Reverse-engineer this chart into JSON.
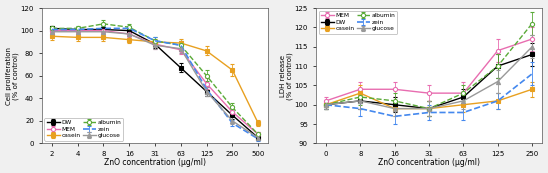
{
  "left": {
    "x_labels": [
      "2",
      "4",
      "8",
      "16",
      "31",
      "63",
      "125",
      "250",
      "500"
    ],
    "x_vals": [
      2,
      4,
      8,
      16,
      31,
      63,
      125,
      250,
      500
    ],
    "ylabel": "Cell proliferation\n(% of control)",
    "xlabel": "ZnO concentration (μg/ml)",
    "ylim": [
      0,
      120
    ],
    "yticks": [
      0,
      20,
      40,
      60,
      80,
      100,
      120
    ],
    "series": {
      "DW": {
        "color": "#000000",
        "linestyle": "-",
        "marker": "s",
        "markersize": 3,
        "linewidth": 1.0,
        "y": [
          102,
          101,
          101,
          100,
          88,
          67,
          46,
          25,
          5
        ],
        "yerr": [
          2,
          2,
          2,
          2,
          3,
          4,
          4,
          3,
          2
        ]
      },
      "MEM": {
        "color": "#e86db0",
        "linestyle": "-",
        "marker": "o",
        "markersize": 3,
        "linewidth": 1.0,
        "y": [
          100,
          100,
          100,
          97,
          88,
          83,
          53,
          28,
          8
        ],
        "yerr": [
          2,
          2,
          2,
          3,
          4,
          4,
          5,
          4,
          2
        ]
      },
      "casein": {
        "color": "#e8a020",
        "linestyle": "-",
        "marker": "s",
        "markersize": 3,
        "linewidth": 1.0,
        "y": [
          95,
          94,
          94,
          92,
          90,
          89,
          82,
          65,
          18
        ],
        "yerr": [
          3,
          3,
          3,
          3,
          3,
          4,
          4,
          5,
          3
        ]
      },
      "albumin": {
        "color": "#5aaa38",
        "linestyle": "--",
        "marker": "o",
        "markersize": 3,
        "linewidth": 1.0,
        "y": [
          102,
          102,
          106,
          103,
          91,
          87,
          60,
          32,
          8
        ],
        "yerr": [
          2,
          2,
          3,
          3,
          3,
          4,
          5,
          4,
          2
        ]
      },
      "zein": {
        "color": "#4488ee",
        "linestyle": "--",
        "marker": "",
        "markersize": 0,
        "linewidth": 1.2,
        "y": [
          101,
          101,
          102,
          102,
          91,
          87,
          48,
          18,
          4
        ],
        "yerr": [
          2,
          2,
          2,
          2,
          3,
          4,
          4,
          3,
          2
        ]
      },
      "glucose": {
        "color": "#999999",
        "linestyle": "-",
        "marker": "^",
        "markersize": 3,
        "linewidth": 1.0,
        "y": [
          99,
          99,
          99,
          97,
          87,
          84,
          46,
          20,
          5
        ],
        "yerr": [
          2,
          2,
          2,
          2,
          3,
          4,
          4,
          3,
          2
        ]
      }
    },
    "legend_order": [
      "DW",
      "MEM",
      "casein",
      "albumin",
      "zein",
      "glucose"
    ],
    "legend_loc": "lower left",
    "legend_ncol": 2
  },
  "right": {
    "x_labels": [
      "0",
      "8",
      "16",
      "31",
      "63",
      "125",
      "250"
    ],
    "x_vals": [
      0,
      8,
      16,
      31,
      63,
      125,
      250
    ],
    "ylabel": "LDH release\n(% of control)",
    "xlabel": "ZnO concentration (μg/ml)",
    "ylim": [
      90,
      125
    ],
    "yticks": [
      90,
      95,
      100,
      105,
      110,
      115,
      120,
      125
    ],
    "series": {
      "MEM": {
        "color": "#e86db0",
        "linestyle": "-",
        "marker": "o",
        "markersize": 3,
        "linewidth": 1.0,
        "y": [
          101,
          104,
          104,
          103,
          103,
          114,
          117
        ],
        "yerr": [
          1,
          2,
          2,
          2,
          3,
          3,
          3
        ]
      },
      "DW": {
        "color": "#000000",
        "linestyle": "-",
        "marker": "s",
        "markersize": 3,
        "linewidth": 1.0,
        "y": [
          100,
          101,
          100,
          99,
          102,
          110,
          113
        ],
        "yerr": [
          1,
          2,
          2,
          2,
          2,
          3,
          3
        ]
      },
      "casein": {
        "color": "#e8a020",
        "linestyle": "-",
        "marker": "s",
        "markersize": 3,
        "linewidth": 1.0,
        "y": [
          100,
          103,
          99,
          99,
          100,
          101,
          104
        ],
        "yerr": [
          1,
          2,
          2,
          2,
          2,
          2,
          2
        ]
      },
      "albumin": {
        "color": "#5aaa38",
        "linestyle": "--",
        "marker": "o",
        "markersize": 3,
        "linewidth": 1.0,
        "y": [
          100,
          102,
          101,
          99,
          103,
          110,
          121
        ],
        "yerr": [
          1,
          2,
          2,
          2,
          2,
          3,
          3
        ]
      },
      "zein": {
        "color": "#4488ee",
        "linestyle": "--",
        "marker": "",
        "markersize": 0,
        "linewidth": 1.2,
        "y": [
          100,
          99,
          97,
          98,
          98,
          101,
          108
        ],
        "yerr": [
          1,
          2,
          2,
          2,
          2,
          2,
          3
        ]
      },
      "glucose": {
        "color": "#999999",
        "linestyle": "-",
        "marker": "^",
        "markersize": 3,
        "linewidth": 1.0,
        "y": [
          100,
          101,
          99,
          99,
          101,
          106,
          115
        ],
        "yerr": [
          1,
          2,
          2,
          2,
          2,
          3,
          3
        ]
      }
    },
    "legend_order": [
      "MEM",
      "DW",
      "casein",
      "albumin",
      "zein",
      "glucose"
    ],
    "legend_loc": "upper left",
    "legend_ncol": 2
  }
}
